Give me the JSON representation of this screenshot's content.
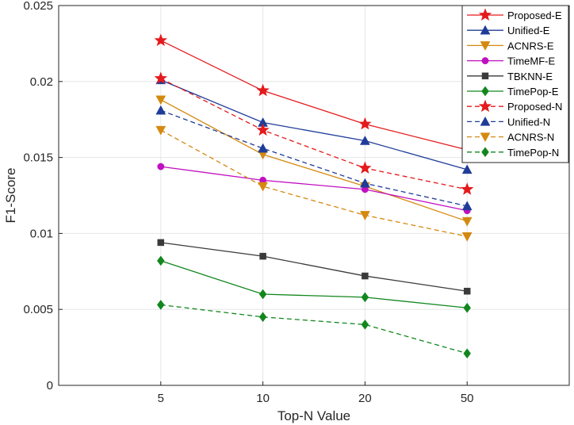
{
  "chart_data": {
    "type": "line",
    "xlabel": "Top-N Value",
    "ylabel": "F1-Score",
    "categories": [
      "5",
      "10",
      "20",
      "50"
    ],
    "ylim": [
      0,
      0.025
    ],
    "yticks": [
      "0",
      "0.005",
      "0.01",
      "0.015",
      "0.02",
      "0.025"
    ],
    "grid": true,
    "legend_position": "top-right",
    "series": [
      {
        "name": "Proposed-E",
        "values": [
          0.0227,
          0.0194,
          0.0172,
          0.0155
        ],
        "color": "#e41a1c",
        "marker": "star",
        "dash": "solid"
      },
      {
        "name": "Unified-E",
        "values": [
          0.0201,
          0.0173,
          0.0161,
          0.0142
        ],
        "color": "#1f3c99",
        "marker": "triangle",
        "dash": "solid"
      },
      {
        "name": "ACNRS-E",
        "values": [
          0.0188,
          0.0152,
          0.0131,
          0.0108
        ],
        "color": "#d4890f",
        "marker": "triangle-down",
        "dash": "solid"
      },
      {
        "name": "TimeMF-E",
        "values": [
          0.0144,
          0.0135,
          0.0129,
          0.0115
        ],
        "color": "#c010c0",
        "marker": "circle",
        "dash": "solid"
      },
      {
        "name": "TBKNN-E",
        "values": [
          0.0094,
          0.0085,
          0.0072,
          0.0062
        ],
        "color": "#3a3a3a",
        "marker": "square",
        "dash": "solid"
      },
      {
        "name": "TimePop-E",
        "values": [
          0.0082,
          0.006,
          0.0058,
          0.0051
        ],
        "color": "#12871e",
        "marker": "diamond",
        "dash": "solid"
      },
      {
        "name": "Proposed-N",
        "values": [
          0.0202,
          0.0168,
          0.0143,
          0.0129
        ],
        "color": "#e41a1c",
        "marker": "star",
        "dash": "dashed"
      },
      {
        "name": "Unified-N",
        "values": [
          0.0181,
          0.0156,
          0.0133,
          0.0118
        ],
        "color": "#1f3c99",
        "marker": "triangle",
        "dash": "dashed"
      },
      {
        "name": "ACNRS-N",
        "values": [
          0.0168,
          0.0131,
          0.0112,
          0.0098
        ],
        "color": "#d4890f",
        "marker": "triangle-down",
        "dash": "dashed"
      },
      {
        "name": "TimePop-N",
        "values": [
          0.0053,
          0.0045,
          0.004,
          0.0021
        ],
        "color": "#12871e",
        "marker": "diamond",
        "dash": "dashed"
      }
    ]
  }
}
